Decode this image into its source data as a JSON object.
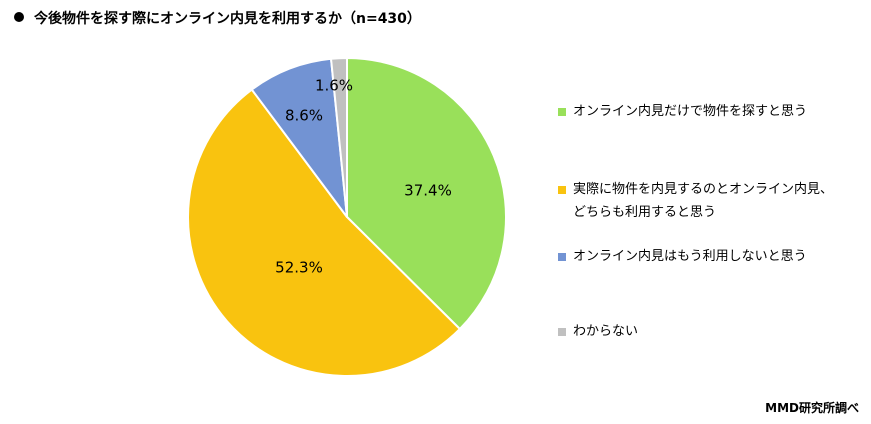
{
  "chart_data": {
    "type": "pie",
    "title": "今後物件を探す際にオンライン内見を利用するか（n=430）",
    "slices": [
      {
        "label_lines": [
          "オンライン内見だけで物件を探すと思う"
        ],
        "value": 37.4,
        "value_label": "37.4%",
        "color": "#99e05a"
      },
      {
        "label_lines": [
          "実際に物件を内見するのとオンライン内見、",
          "どちらも利用すると思う"
        ],
        "value": 52.3,
        "value_label": "52.3%",
        "color": "#f9c30f"
      },
      {
        "label_lines": [
          "オンライン内見はもう利用しないと思う"
        ],
        "value": 8.6,
        "value_label": "8.6%",
        "color": "#7293d3"
      },
      {
        "label_lines": [
          "わからない"
        ],
        "value": 1.6,
        "value_label": "1.6%",
        "color": "#c0c0c0"
      }
    ],
    "legend_position": "right",
    "start": "top",
    "direction": "clockwise"
  },
  "source": "MMD研究所調べ"
}
